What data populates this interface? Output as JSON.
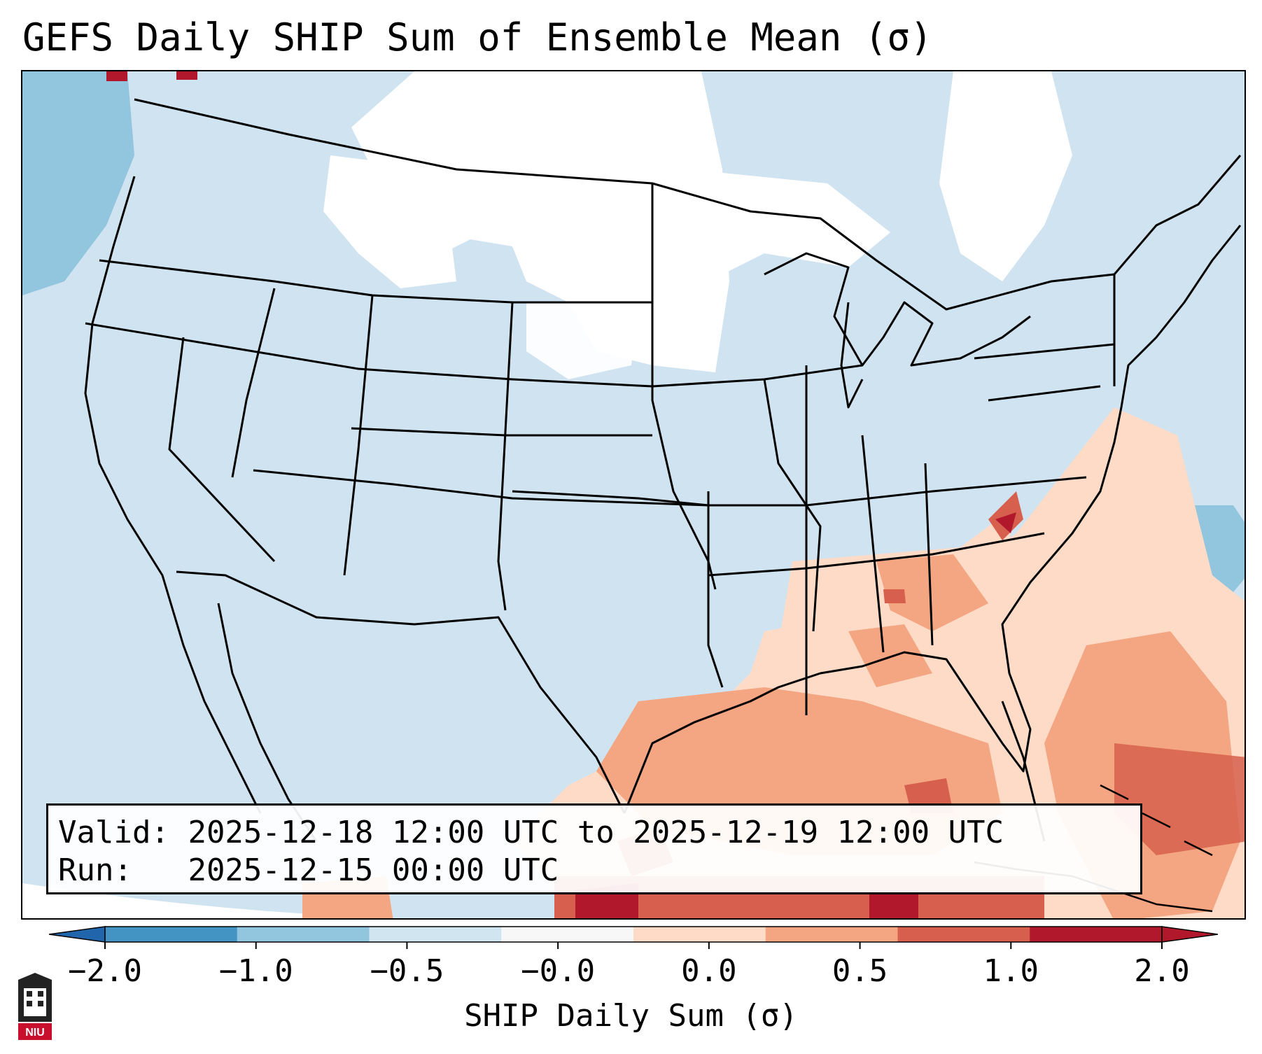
{
  "title": "GEFS Daily SHIP Sum of Ensemble Mean (σ)",
  "info": {
    "valid_label": "Valid:",
    "valid_value": "2025-12-18 12:00 UTC to 2025-12-19 12:00 UTC",
    "run_label": "Run:",
    "run_value": "2025-12-15 00:00 UTC"
  },
  "colorbar": {
    "label": "SHIP Daily Sum (σ)",
    "ticks": [
      "−2.0",
      "−1.0",
      "−0.5",
      "−0.0",
      "0.0",
      "0.5",
      "1.0",
      "2.0"
    ],
    "colors": [
      "#4393c3",
      "#92c5de",
      "#d1e5f0",
      "#f7f7f7",
      "#fddbc7",
      "#f4a582",
      "#d6604d",
      "#b2182b"
    ],
    "under_color": "#2166ac",
    "over_color": "#b2182b"
  },
  "logo": {
    "text": "NIU",
    "icon": "niu-logo-icon"
  }
}
